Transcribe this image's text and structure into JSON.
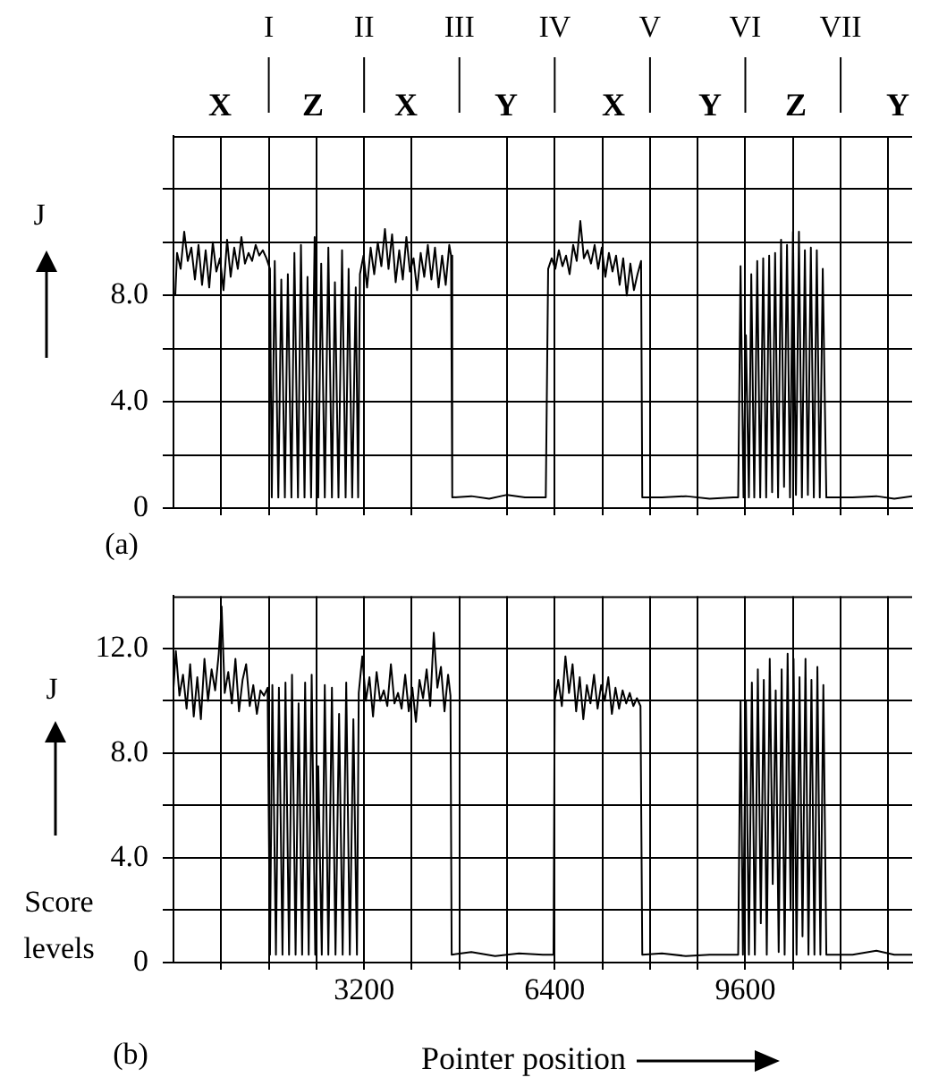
{
  "chart_data": [
    {
      "type": "line",
      "ylabel": "J",
      "xlim": [
        0,
        12400
      ],
      "ylim": [
        0,
        14
      ],
      "xticks": [
        {
          "value": 800,
          "label": null
        },
        {
          "value": 1600,
          "label": null
        },
        {
          "value": 2400,
          "label": null
        },
        {
          "value": 3200,
          "label": null
        },
        {
          "value": 4000,
          "label": null
        },
        {
          "value": 5600,
          "label": null
        },
        {
          "value": 6400,
          "label": null
        },
        {
          "value": 7200,
          "label": null
        },
        {
          "value": 8000,
          "label": null
        },
        {
          "value": 8800,
          "label": null
        },
        {
          "value": 9600,
          "label": null
        },
        {
          "value": 10400,
          "label": null
        },
        {
          "value": 11200,
          "label": null
        },
        {
          "value": 12000,
          "label": null
        }
      ],
      "yticks": [
        0,
        {
          "value": 2,
          "label": null
        },
        {
          "value": 4,
          "label": "4.0"
        },
        {
          "value": 6,
          "label": null
        },
        {
          "value": 8,
          "label": "8.0"
        },
        {
          "value": 10,
          "label": null
        },
        {
          "value": 12,
          "label": null
        }
      ],
      "ref_lines": [
        {
          "axis": "x",
          "value": 1600,
          "label": "I"
        },
        {
          "axis": "x",
          "value": 3200,
          "label": "II"
        },
        {
          "axis": "x",
          "value": 4800,
          "label": "III"
        },
        {
          "axis": "x",
          "value": 6400,
          "label": "IV"
        },
        {
          "axis": "x",
          "value": 8000,
          "label": "V"
        },
        {
          "axis": "x",
          "value": 9600,
          "label": "VI"
        },
        {
          "axis": "x",
          "value": 11200,
          "label": "VII"
        }
      ],
      "grid": true,
      "legend": false,
      "tick_labels": "y",
      "marker": "none",
      "line_style": "solid",
      "annotations": [
        "(a)",
        "X",
        "Z",
        "X",
        "Y",
        "X",
        "Y",
        "Z",
        "Y"
      ],
      "series": [
        {
          "color": "#000000",
          "x": [
            30,
            60,
            120,
            180,
            240,
            300,
            360,
            420,
            480,
            540,
            600,
            660,
            720,
            780,
            840,
            900,
            960,
            1020,
            1080,
            1140,
            1200,
            1260,
            1320,
            1380,
            1440,
            1500,
            1560,
            1620,
            1650,
            1700,
            1760,
            1810,
            1870,
            1920,
            1980,
            2030,
            2090,
            2140,
            2200,
            2250,
            2310,
            2370,
            2430,
            2480,
            2540,
            2600,
            2660,
            2710,
            2770,
            2830,
            2890,
            2940,
            3000,
            3060,
            3100,
            3130,
            3190,
            3250,
            3310,
            3370,
            3430,
            3490,
            3550,
            3610,
            3670,
            3730,
            3790,
            3850,
            3910,
            3970,
            4030,
            4090,
            4150,
            4210,
            4270,
            4330,
            4390,
            4450,
            4510,
            4570,
            4630,
            4660,
            4680,
            5000,
            5300,
            5600,
            5900,
            6250,
            6290,
            6350,
            6410,
            6470,
            6530,
            6590,
            6650,
            6710,
            6770,
            6830,
            6890,
            6950,
            7010,
            7070,
            7130,
            7190,
            7250,
            7310,
            7370,
            7430,
            7490,
            7550,
            7610,
            7670,
            7730,
            7790,
            7850,
            7870,
            8200,
            8600,
            9000,
            9400,
            9480,
            9520,
            9570,
            9610,
            9660,
            9700,
            9750,
            9800,
            9850,
            9900,
            9950,
            10000,
            10050,
            10100,
            10150,
            10200,
            10250,
            10300,
            10350,
            10400,
            10450,
            10500,
            10550,
            10600,
            10650,
            10700,
            10750,
            10800,
            10850,
            10900,
            10960,
            11400,
            11800,
            12100,
            12400
          ],
          "values": [
            8.0,
            9.6,
            9.0,
            10.4,
            9.3,
            9.8,
            8.6,
            9.9,
            8.4,
            9.7,
            8.3,
            10.0,
            8.9,
            9.4,
            8.2,
            10.1,
            8.7,
            9.8,
            9.0,
            10.2,
            9.2,
            9.6,
            9.3,
            9.9,
            9.5,
            9.7,
            9.4,
            9.0,
            0.4,
            9.3,
            0.4,
            8.6,
            0.4,
            8.8,
            0.4,
            9.6,
            0.4,
            9.9,
            0.4,
            8.7,
            0.4,
            10.2,
            0.4,
            9.2,
            0.4,
            9.8,
            0.4,
            8.5,
            0.4,
            9.7,
            0.4,
            9.0,
            0.4,
            8.3,
            0.4,
            8.8,
            9.5,
            8.3,
            9.8,
            8.8,
            10.0,
            9.1,
            10.5,
            9.0,
            10.3,
            8.5,
            9.7,
            8.6,
            10.2,
            8.9,
            9.4,
            8.2,
            9.6,
            8.7,
            9.9,
            8.6,
            9.8,
            8.3,
            9.5,
            8.4,
            9.9,
            9.5,
            0.4,
            0.45,
            0.35,
            0.5,
            0.4,
            0.4,
            9.0,
            9.4,
            9.0,
            9.7,
            9.1,
            9.5,
            8.8,
            9.9,
            9.3,
            10.8,
            9.4,
            9.7,
            9.2,
            9.9,
            9.0,
            9.8,
            8.7,
            9.6,
            8.9,
            9.5,
            8.4,
            9.4,
            8.0,
            9.2,
            8.2,
            8.8,
            9.3,
            0.4,
            0.4,
            0.45,
            0.35,
            0.4,
            0.4,
            9.1,
            0.4,
            6.5,
            0.4,
            8.8,
            0.4,
            9.3,
            0.4,
            9.4,
            0.4,
            9.5,
            0.6,
            9.6,
            0.4,
            10.1,
            0.8,
            9.9,
            0.4,
            10.4,
            0.5,
            10.4,
            0.4,
            9.7,
            0.5,
            9.8,
            0.4,
            9.7,
            0.4,
            9.0,
            0.4,
            0.4,
            0.45,
            0.35,
            0.45
          ]
        }
      ]
    },
    {
      "type": "line",
      "ylabel": "J",
      "xlabel": "Pointer position",
      "xlim": [
        0,
        12400
      ],
      "ylim": [
        0,
        14
      ],
      "xticks": [
        {
          "value": 800,
          "label": null
        },
        {
          "value": 1600,
          "label": null
        },
        {
          "value": 2400,
          "label": null
        },
        3200,
        {
          "value": 4000,
          "label": null
        },
        {
          "value": 4800,
          "label": null
        },
        {
          "value": 5600,
          "label": null
        },
        6400,
        {
          "value": 7200,
          "label": null
        },
        {
          "value": 8000,
          "label": null
        },
        {
          "value": 8800,
          "label": null
        },
        9600,
        {
          "value": 10400,
          "label": null
        },
        {
          "value": 11200,
          "label": null
        },
        {
          "value": 12000,
          "label": null
        }
      ],
      "yticks": [
        0,
        {
          "value": 2,
          "label": null
        },
        {
          "value": 4,
          "label": "4.0"
        },
        {
          "value": 6,
          "label": null
        },
        {
          "value": 8,
          "label": "8.0"
        },
        {
          "value": 10,
          "label": null
        },
        {
          "value": 12,
          "label": "12.0"
        }
      ],
      "grid": true,
      "legend": false,
      "marker": "none",
      "line_style": "solid",
      "annotations": [
        "(b)",
        "Score levels"
      ],
      "series": [
        {
          "color": "#000000",
          "x": [
            0,
            40,
            100,
            160,
            220,
            280,
            340,
            400,
            460,
            520,
            580,
            640,
            700,
            760,
            808,
            860,
            920,
            980,
            1040,
            1100,
            1160,
            1220,
            1280,
            1340,
            1400,
            1460,
            1520,
            1580,
            1620,
            1660,
            1720,
            1770,
            1830,
            1880,
            1940,
            1990,
            2050,
            2100,
            2160,
            2210,
            2270,
            2320,
            2380,
            2430,
            2490,
            2540,
            2600,
            2660,
            2720,
            2780,
            2840,
            2900,
            2960,
            3020,
            3080,
            3110,
            3170,
            3230,
            3290,
            3350,
            3410,
            3470,
            3530,
            3590,
            3650,
            3710,
            3770,
            3830,
            3890,
            3950,
            4010,
            4070,
            4130,
            4190,
            4250,
            4310,
            4370,
            4430,
            4490,
            4550,
            4610,
            4650,
            4670,
            5000,
            5400,
            5800,
            6200,
            6380,
            6400,
            6460,
            6520,
            6580,
            6640,
            6700,
            6760,
            6820,
            6880,
            6940,
            7000,
            7060,
            7120,
            7180,
            7240,
            7300,
            7360,
            7420,
            7480,
            7540,
            7600,
            7660,
            7720,
            7780,
            7840,
            7870,
            8200,
            8600,
            9000,
            9400,
            9480,
            9520,
            9560,
            9610,
            9660,
            9710,
            9760,
            9810,
            9860,
            9910,
            9960,
            10010,
            10060,
            10110,
            10160,
            10210,
            10260,
            10310,
            10360,
            10410,
            10460,
            10510,
            10560,
            10610,
            10660,
            10710,
            10760,
            10810,
            10860,
            10910,
            10960,
            11400,
            11800,
            12100,
            12400
          ],
          "values": [
            10.5,
            11.9,
            10.2,
            11.0,
            9.7,
            11.4,
            9.4,
            10.9,
            9.3,
            11.6,
            10.0,
            11.2,
            10.4,
            11.8,
            13.6,
            10.3,
            11.1,
            9.9,
            11.6,
            9.6,
            10.8,
            11.4,
            9.8,
            10.6,
            9.5,
            10.4,
            10.2,
            10.5,
            0.3,
            10.6,
            0.3,
            10.5,
            0.3,
            10.7,
            0.3,
            11.0,
            0.3,
            9.9,
            0.3,
            10.7,
            0.3,
            11.0,
            0.3,
            7.5,
            0.3,
            10.6,
            0.3,
            10.5,
            0.3,
            9.5,
            0.3,
            10.7,
            0.3,
            9.3,
            0.3,
            10.3,
            11.7,
            10.0,
            10.9,
            9.4,
            11.1,
            10.0,
            10.4,
            9.8,
            11.4,
            9.9,
            10.3,
            9.7,
            11.0,
            9.6,
            10.5,
            9.2,
            10.8,
            10.1,
            11.2,
            9.8,
            12.6,
            10.5,
            11.3,
            9.6,
            11.0,
            10.2,
            0.3,
            0.4,
            0.25,
            0.35,
            0.3,
            0.3,
            10.0,
            10.8,
            9.8,
            11.7,
            10.3,
            11.4,
            9.6,
            10.9,
            9.3,
            10.6,
            9.9,
            11.0,
            9.7,
            10.6,
            10.0,
            10.9,
            9.5,
            10.5,
            9.7,
            10.4,
            9.9,
            10.3,
            9.8,
            10.1,
            9.8,
            0.3,
            0.35,
            0.25,
            0.3,
            0.3,
            0.3,
            10.0,
            0.3,
            10.0,
            0.3,
            10.7,
            0.3,
            11.2,
            1.5,
            10.8,
            0.3,
            11.6,
            3.0,
            10.4,
            0.4,
            11.2,
            0.3,
            11.8,
            2.0,
            11.6,
            0.3,
            10.9,
            1.0,
            11.6,
            0.3,
            10.8,
            0.3,
            11.3,
            0.3,
            10.6,
            0.3,
            0.3,
            0.45,
            0.3,
            0.3
          ]
        }
      ]
    }
  ]
}
